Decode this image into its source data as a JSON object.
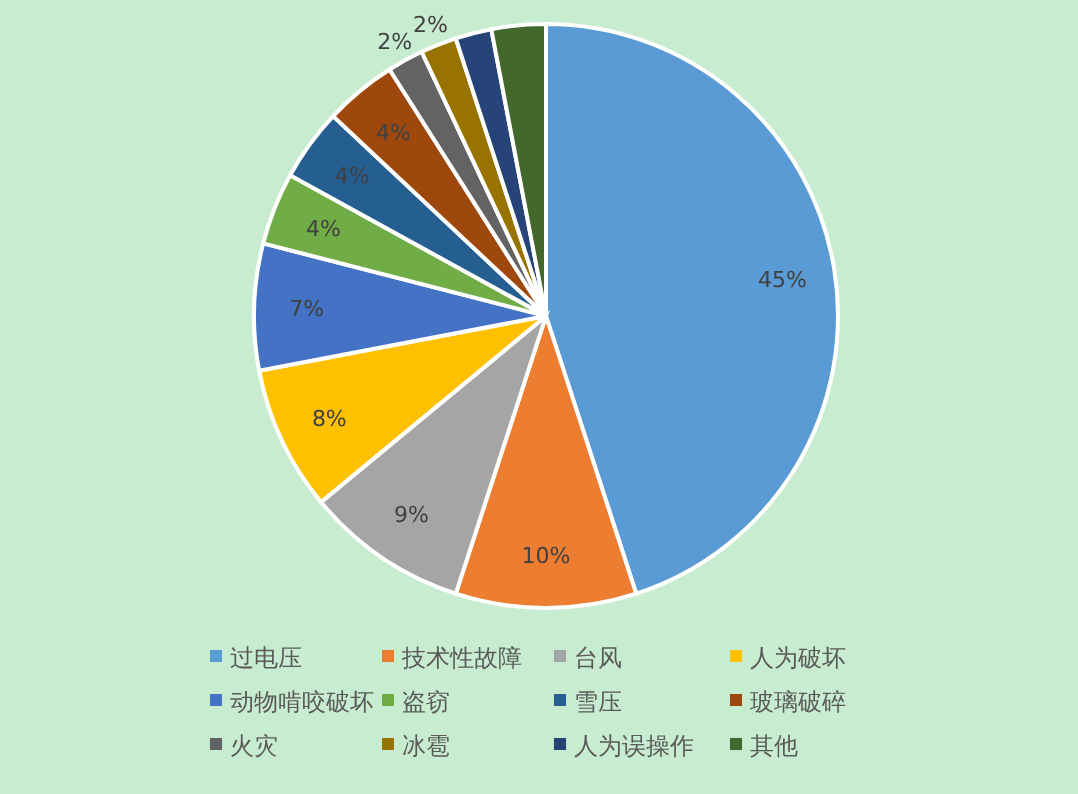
{
  "chart_data": {
    "type": "pie",
    "legend": "bottom",
    "categories": [
      "过电压",
      "技术性故障",
      "台风",
      "人为破坏",
      "动物啃咬破坏",
      "盗窃",
      "雪压",
      "玻璃破碎",
      "火灾",
      "冰雹",
      "人为误操作",
      "其他"
    ],
    "values": [
      45,
      10,
      9,
      8,
      7,
      4,
      4,
      4,
      2,
      2,
      2,
      3
    ],
    "value_labels": [
      "45%",
      "10%",
      "9%",
      "8%",
      "7%",
      "4%",
      "4%",
      "4%",
      "2%",
      "2%",
      null,
      null
    ],
    "colors": [
      "#5b9bd5",
      "#ed7d31",
      "#a5a5a5",
      "#ffc000",
      "#4472c4",
      "#70ad47",
      "#255e91",
      "#9e480e",
      "#636363",
      "#997300",
      "#264478",
      "#43682b"
    ]
  }
}
